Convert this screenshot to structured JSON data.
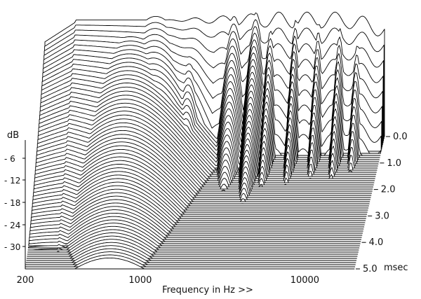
{
  "chart_data": {
    "type": "waterfall",
    "title": "",
    "xlabel": "Frequency in Hz >>",
    "ylabel": "dB",
    "zlabel": "msec",
    "x_scale": "log",
    "x_range": [
      200,
      20000
    ],
    "x_ticks": [
      {
        "value": 200,
        "label": "200"
      },
      {
        "value": 1000,
        "label": "1000"
      },
      {
        "value": 10000,
        "label": "10000"
      }
    ],
    "y_ticks": [
      {
        "value": -6,
        "label": "- 6"
      },
      {
        "value": -12,
        "label": "- 12"
      },
      {
        "value": -18,
        "label": "- 18"
      },
      {
        "value": -24,
        "label": "- 24"
      },
      {
        "value": -30,
        "label": "- 30"
      }
    ],
    "time_range": [
      0,
      5.0
    ],
    "time_ticks": [
      {
        "value": 0.0,
        "label": "0.0"
      },
      {
        "value": 1.0,
        "label": "1.0"
      },
      {
        "value": 2.0,
        "label": "2.0"
      },
      {
        "value": 3.0,
        "label": "3.0"
      },
      {
        "value": 4.0,
        "label": "4.0"
      },
      {
        "value": 5.0,
        "label": "5.0"
      }
    ],
    "time_unit_label": "msec",
    "slice_count": 64,
    "grid": false,
    "legend": "none"
  }
}
